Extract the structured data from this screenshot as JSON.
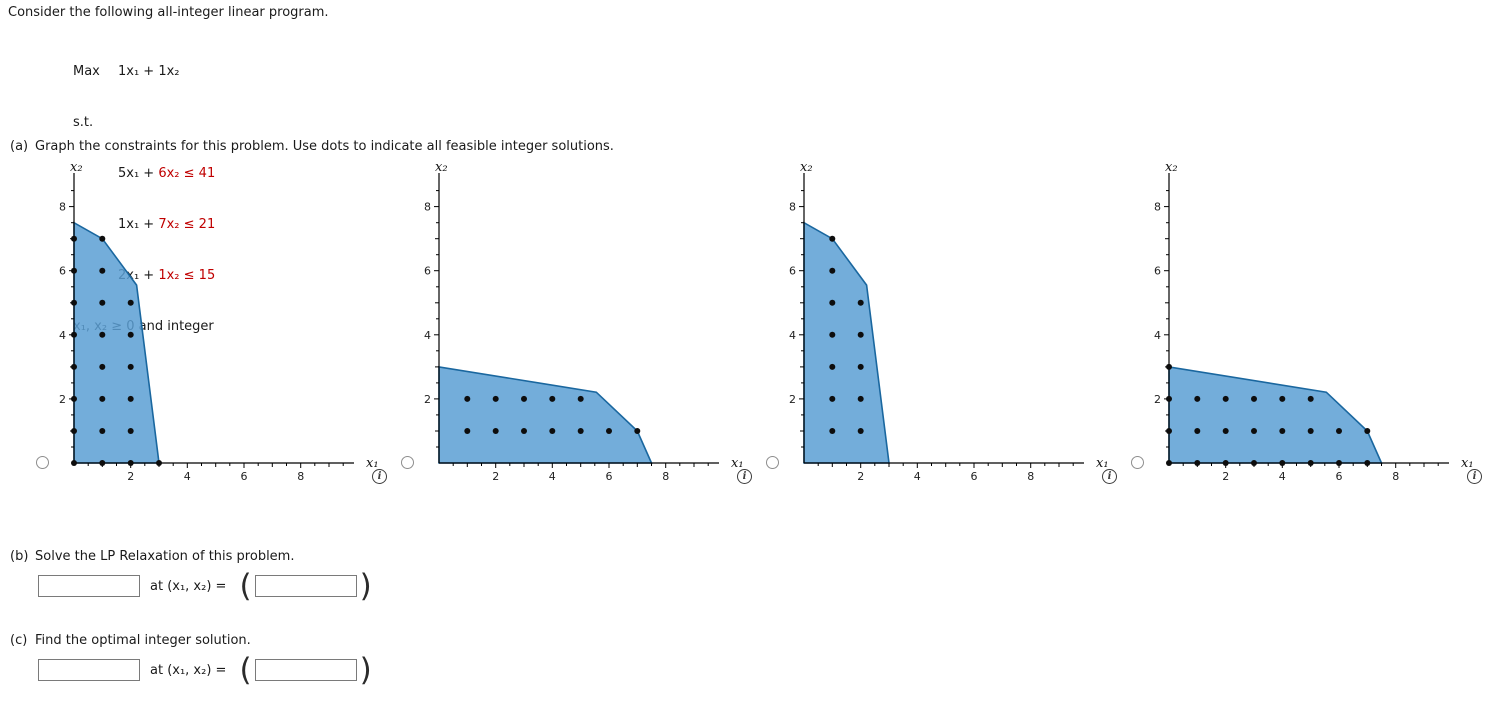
{
  "page": {
    "intro": "Consider the following all-integer linear program.",
    "objective_label": "Max",
    "objective": "1x₁ + 1x₂",
    "st_label": "s.t.",
    "constraints": [
      {
        "lhs": "5x₁ + ",
        "rhs": "6x₂ ≤ 41"
      },
      {
        "lhs": "1x₁ + ",
        "rhs": "7x₂ ≤ 21"
      },
      {
        "lhs": "2x₁ + ",
        "rhs": "1x₂ ≤ 15"
      }
    ],
    "nonneg": "x₁, x₂ ≥ 0 and integer",
    "part_a_label": "(a)",
    "part_a": "Graph the constraints for this problem. Use dots to indicate all feasible integer solutions.",
    "info_glyph": "i"
  },
  "answers": {
    "b": {
      "label": "(b)",
      "prompt": "Solve the LP Relaxation of this problem.",
      "value": "",
      "mid": "at (x₁, x₂) = ",
      "open_paren": "(",
      "point_value": "",
      "close_paren": ")"
    },
    "c": {
      "label": "(c)",
      "prompt": "Find the optimal integer solution.",
      "value": "",
      "mid": "at (x₁, x₂) = ",
      "open_paren": "(",
      "point_value": "",
      "close_paren": ")"
    }
  },
  "chart_data": [
    {
      "type": "area",
      "title": "",
      "xlabel": "x₁",
      "ylabel": "x₂",
      "xlim": [
        0,
        9.6
      ],
      "ylim": [
        0,
        8.8
      ],
      "xticks": [
        2,
        4,
        6,
        8
      ],
      "yticks": [
        2,
        4,
        6,
        8
      ],
      "fill": "#5b9fd4",
      "stroke": "#1a679f",
      "region_vertices": [
        [
          0,
          0
        ],
        [
          0,
          7.5
        ],
        [
          1,
          7
        ],
        [
          2.21,
          5.55
        ],
        [
          3,
          0
        ]
      ],
      "integer_dots": [
        [
          0,
          0
        ],
        [
          0,
          1
        ],
        [
          0,
          2
        ],
        [
          0,
          3
        ],
        [
          0,
          4
        ],
        [
          0,
          5
        ],
        [
          0,
          6
        ],
        [
          0,
          7
        ],
        [
          1,
          0
        ],
        [
          1,
          1
        ],
        [
          1,
          2
        ],
        [
          1,
          3
        ],
        [
          1,
          4
        ],
        [
          1,
          5
        ],
        [
          1,
          6
        ],
        [
          1,
          7
        ],
        [
          2,
          0
        ],
        [
          2,
          1
        ],
        [
          2,
          2
        ],
        [
          2,
          3
        ],
        [
          2,
          4
        ],
        [
          2,
          5
        ],
        [
          3,
          0
        ]
      ]
    },
    {
      "type": "area",
      "title": "",
      "xlabel": "x₁",
      "ylabel": "x₂",
      "xlim": [
        0,
        9.6
      ],
      "ylim": [
        0,
        8.8
      ],
      "xticks": [
        2,
        4,
        6,
        8
      ],
      "yticks": [
        2,
        4,
        6,
        8
      ],
      "fill": "#5b9fd4",
      "stroke": "#1a679f",
      "region_vertices": [
        [
          0,
          0
        ],
        [
          0,
          3
        ],
        [
          5.55,
          2.21
        ],
        [
          7,
          1
        ],
        [
          7.5,
          0
        ]
      ],
      "integer_dots": [
        [
          1,
          1
        ],
        [
          2,
          1
        ],
        [
          3,
          1
        ],
        [
          4,
          1
        ],
        [
          5,
          1
        ],
        [
          6,
          1
        ],
        [
          7,
          1
        ],
        [
          1,
          2
        ],
        [
          2,
          2
        ],
        [
          3,
          2
        ],
        [
          4,
          2
        ],
        [
          5,
          2
        ]
      ]
    },
    {
      "type": "area",
      "title": "",
      "xlabel": "x₁",
      "ylabel": "x₂",
      "xlim": [
        0,
        9.6
      ],
      "ylim": [
        0,
        8.8
      ],
      "xticks": [
        2,
        4,
        6,
        8
      ],
      "yticks": [
        2,
        4,
        6,
        8
      ],
      "fill": "#5b9fd4",
      "stroke": "#1a679f",
      "region_vertices": [
        [
          0,
          0
        ],
        [
          0,
          7.5
        ],
        [
          1,
          7
        ],
        [
          2.21,
          5.55
        ],
        [
          3,
          0
        ]
      ],
      "integer_dots": [
        [
          1,
          1
        ],
        [
          1,
          2
        ],
        [
          1,
          3
        ],
        [
          1,
          4
        ],
        [
          1,
          5
        ],
        [
          1,
          6
        ],
        [
          1,
          7
        ],
        [
          2,
          1
        ],
        [
          2,
          2
        ],
        [
          2,
          3
        ],
        [
          2,
          4
        ],
        [
          2,
          5
        ]
      ]
    },
    {
      "type": "area",
      "title": "",
      "xlabel": "x₁",
      "ylabel": "x₂",
      "xlim": [
        0,
        9.6
      ],
      "ylim": [
        0,
        8.8
      ],
      "xticks": [
        2,
        4,
        6,
        8
      ],
      "yticks": [
        2,
        4,
        6,
        8
      ],
      "fill": "#5b9fd4",
      "stroke": "#1a679f",
      "region_vertices": [
        [
          0,
          0
        ],
        [
          0,
          3
        ],
        [
          5.55,
          2.21
        ],
        [
          7,
          1
        ],
        [
          7.5,
          0
        ]
      ],
      "integer_dots": [
        [
          0,
          0
        ],
        [
          1,
          0
        ],
        [
          2,
          0
        ],
        [
          3,
          0
        ],
        [
          4,
          0
        ],
        [
          5,
          0
        ],
        [
          6,
          0
        ],
        [
          7,
          0
        ],
        [
          0,
          1
        ],
        [
          1,
          1
        ],
        [
          2,
          1
        ],
        [
          3,
          1
        ],
        [
          4,
          1
        ],
        [
          5,
          1
        ],
        [
          6,
          1
        ],
        [
          7,
          1
        ],
        [
          0,
          2
        ],
        [
          1,
          2
        ],
        [
          2,
          2
        ],
        [
          3,
          2
        ],
        [
          4,
          2
        ],
        [
          5,
          2
        ],
        [
          0,
          3
        ]
      ]
    }
  ]
}
